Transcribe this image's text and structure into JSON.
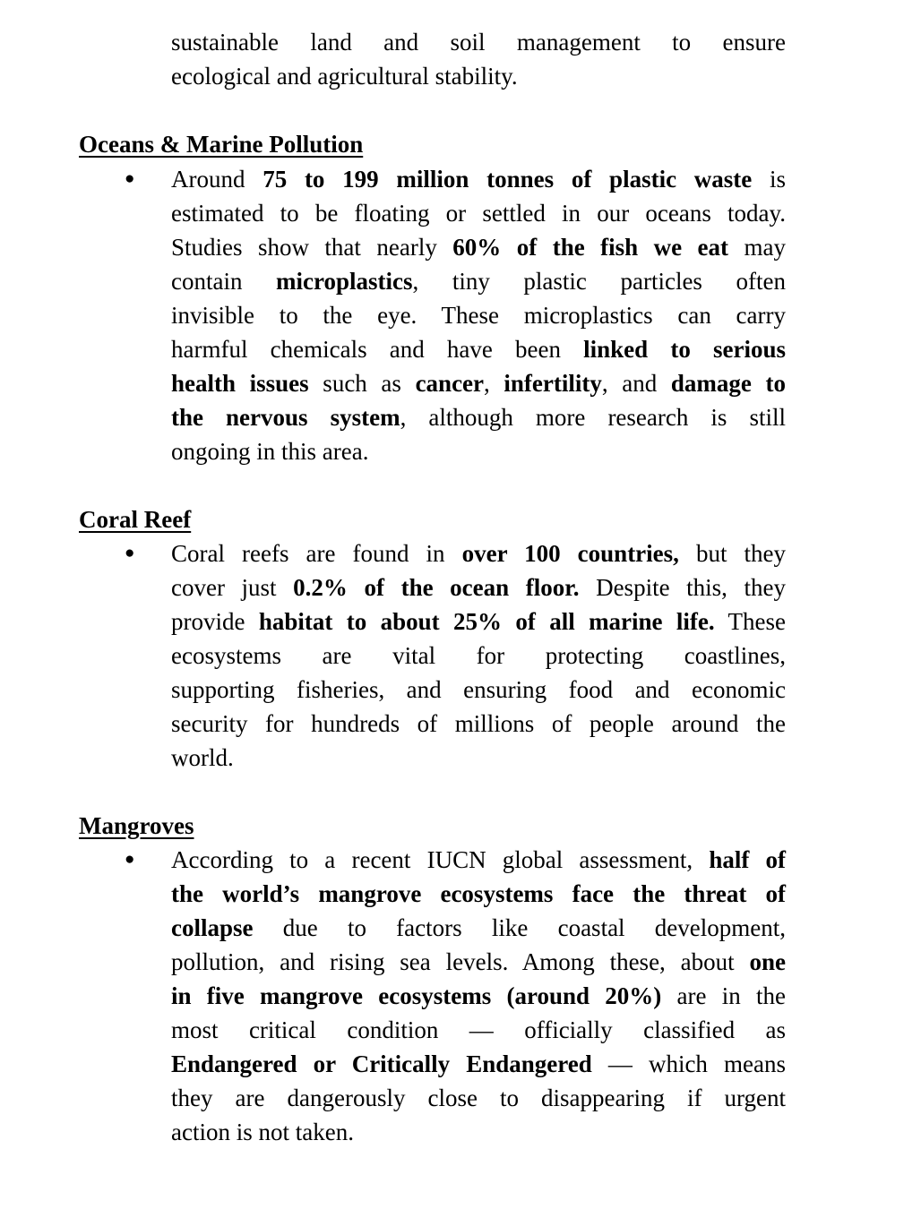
{
  "intro": {
    "lines": [
      [
        [
          "sustainable land and soil management to ensure",
          false
        ]
      ],
      [
        [
          "ecological and agricultural stability.",
          false
        ]
      ]
    ]
  },
  "sections": [
    {
      "heading": "Oceans & Marine Pollution",
      "bullet": "●",
      "lines": [
        [
          [
            "Around ",
            false
          ],
          [
            "75 to 199 million tonnes of plastic waste",
            true
          ],
          [
            " is",
            false
          ]
        ],
        [
          [
            "estimated to be floating or settled in our oceans today.",
            false
          ]
        ],
        [
          [
            "Studies show that nearly ",
            false
          ],
          [
            "60% of the fish we eat",
            true
          ],
          [
            " may",
            false
          ]
        ],
        [
          [
            "contain ",
            false
          ],
          [
            "microplastics",
            true
          ],
          [
            ", tiny plastic particles often",
            false
          ]
        ],
        [
          [
            "invisible to the eye. These microplastics can carry",
            false
          ]
        ],
        [
          [
            "harmful chemicals and have been ",
            false
          ],
          [
            "linked to serious",
            true
          ]
        ],
        [
          [
            "health issues",
            true
          ],
          [
            " such as ",
            false
          ],
          [
            "cancer",
            true
          ],
          [
            ", ",
            false
          ],
          [
            "infertility",
            true
          ],
          [
            ", and ",
            false
          ],
          [
            "damage to",
            true
          ]
        ],
        [
          [
            "the nervous system",
            true
          ],
          [
            ", although more research is still",
            false
          ]
        ],
        [
          [
            "ongoing in this area.",
            false
          ]
        ]
      ]
    },
    {
      "heading": "Coral Reef",
      "bullet": "●",
      "lines": [
        [
          [
            "Coral reefs are found in ",
            false
          ],
          [
            "over 100 countries,",
            true
          ],
          [
            " but they",
            false
          ]
        ],
        [
          [
            "cover just ",
            false
          ],
          [
            "0.2% of the ocean floor.",
            true
          ],
          [
            " Despite this, they",
            false
          ]
        ],
        [
          [
            "provide ",
            false
          ],
          [
            "habitat to about 25% of all marine life.",
            true
          ],
          [
            " These",
            false
          ]
        ],
        [
          [
            "ecosystems are vital for protecting coastlines,",
            false
          ]
        ],
        [
          [
            "supporting fisheries, and ensuring food and economic",
            false
          ]
        ],
        [
          [
            "security for hundreds of millions of people around the",
            false
          ]
        ],
        [
          [
            "world.",
            false
          ]
        ]
      ]
    },
    {
      "heading": "Mangroves",
      "bullet": "●",
      "lines": [
        [
          [
            "According to a recent IUCN global assessment, ",
            false
          ],
          [
            "half of",
            true
          ]
        ],
        [
          [
            "the world’s mangrove ecosystems face the threat of",
            true
          ]
        ],
        [
          [
            "collapse",
            true
          ],
          [
            " due to factors like coastal development,",
            false
          ]
        ],
        [
          [
            "pollution, and rising sea levels. Among these, about ",
            false
          ],
          [
            "one",
            true
          ]
        ],
        [
          [
            "in five mangrove ecosystems (around 20%)",
            true
          ],
          [
            " are in the",
            false
          ]
        ],
        [
          [
            "most critical condition — officially classified as",
            false
          ]
        ],
        [
          [
            "Endangered or Critically Endangered",
            true
          ],
          [
            " — which means",
            false
          ]
        ],
        [
          [
            "they are dangerously close to disappearing if urgent",
            false
          ]
        ],
        [
          [
            "action is not taken.",
            false
          ]
        ]
      ]
    }
  ]
}
